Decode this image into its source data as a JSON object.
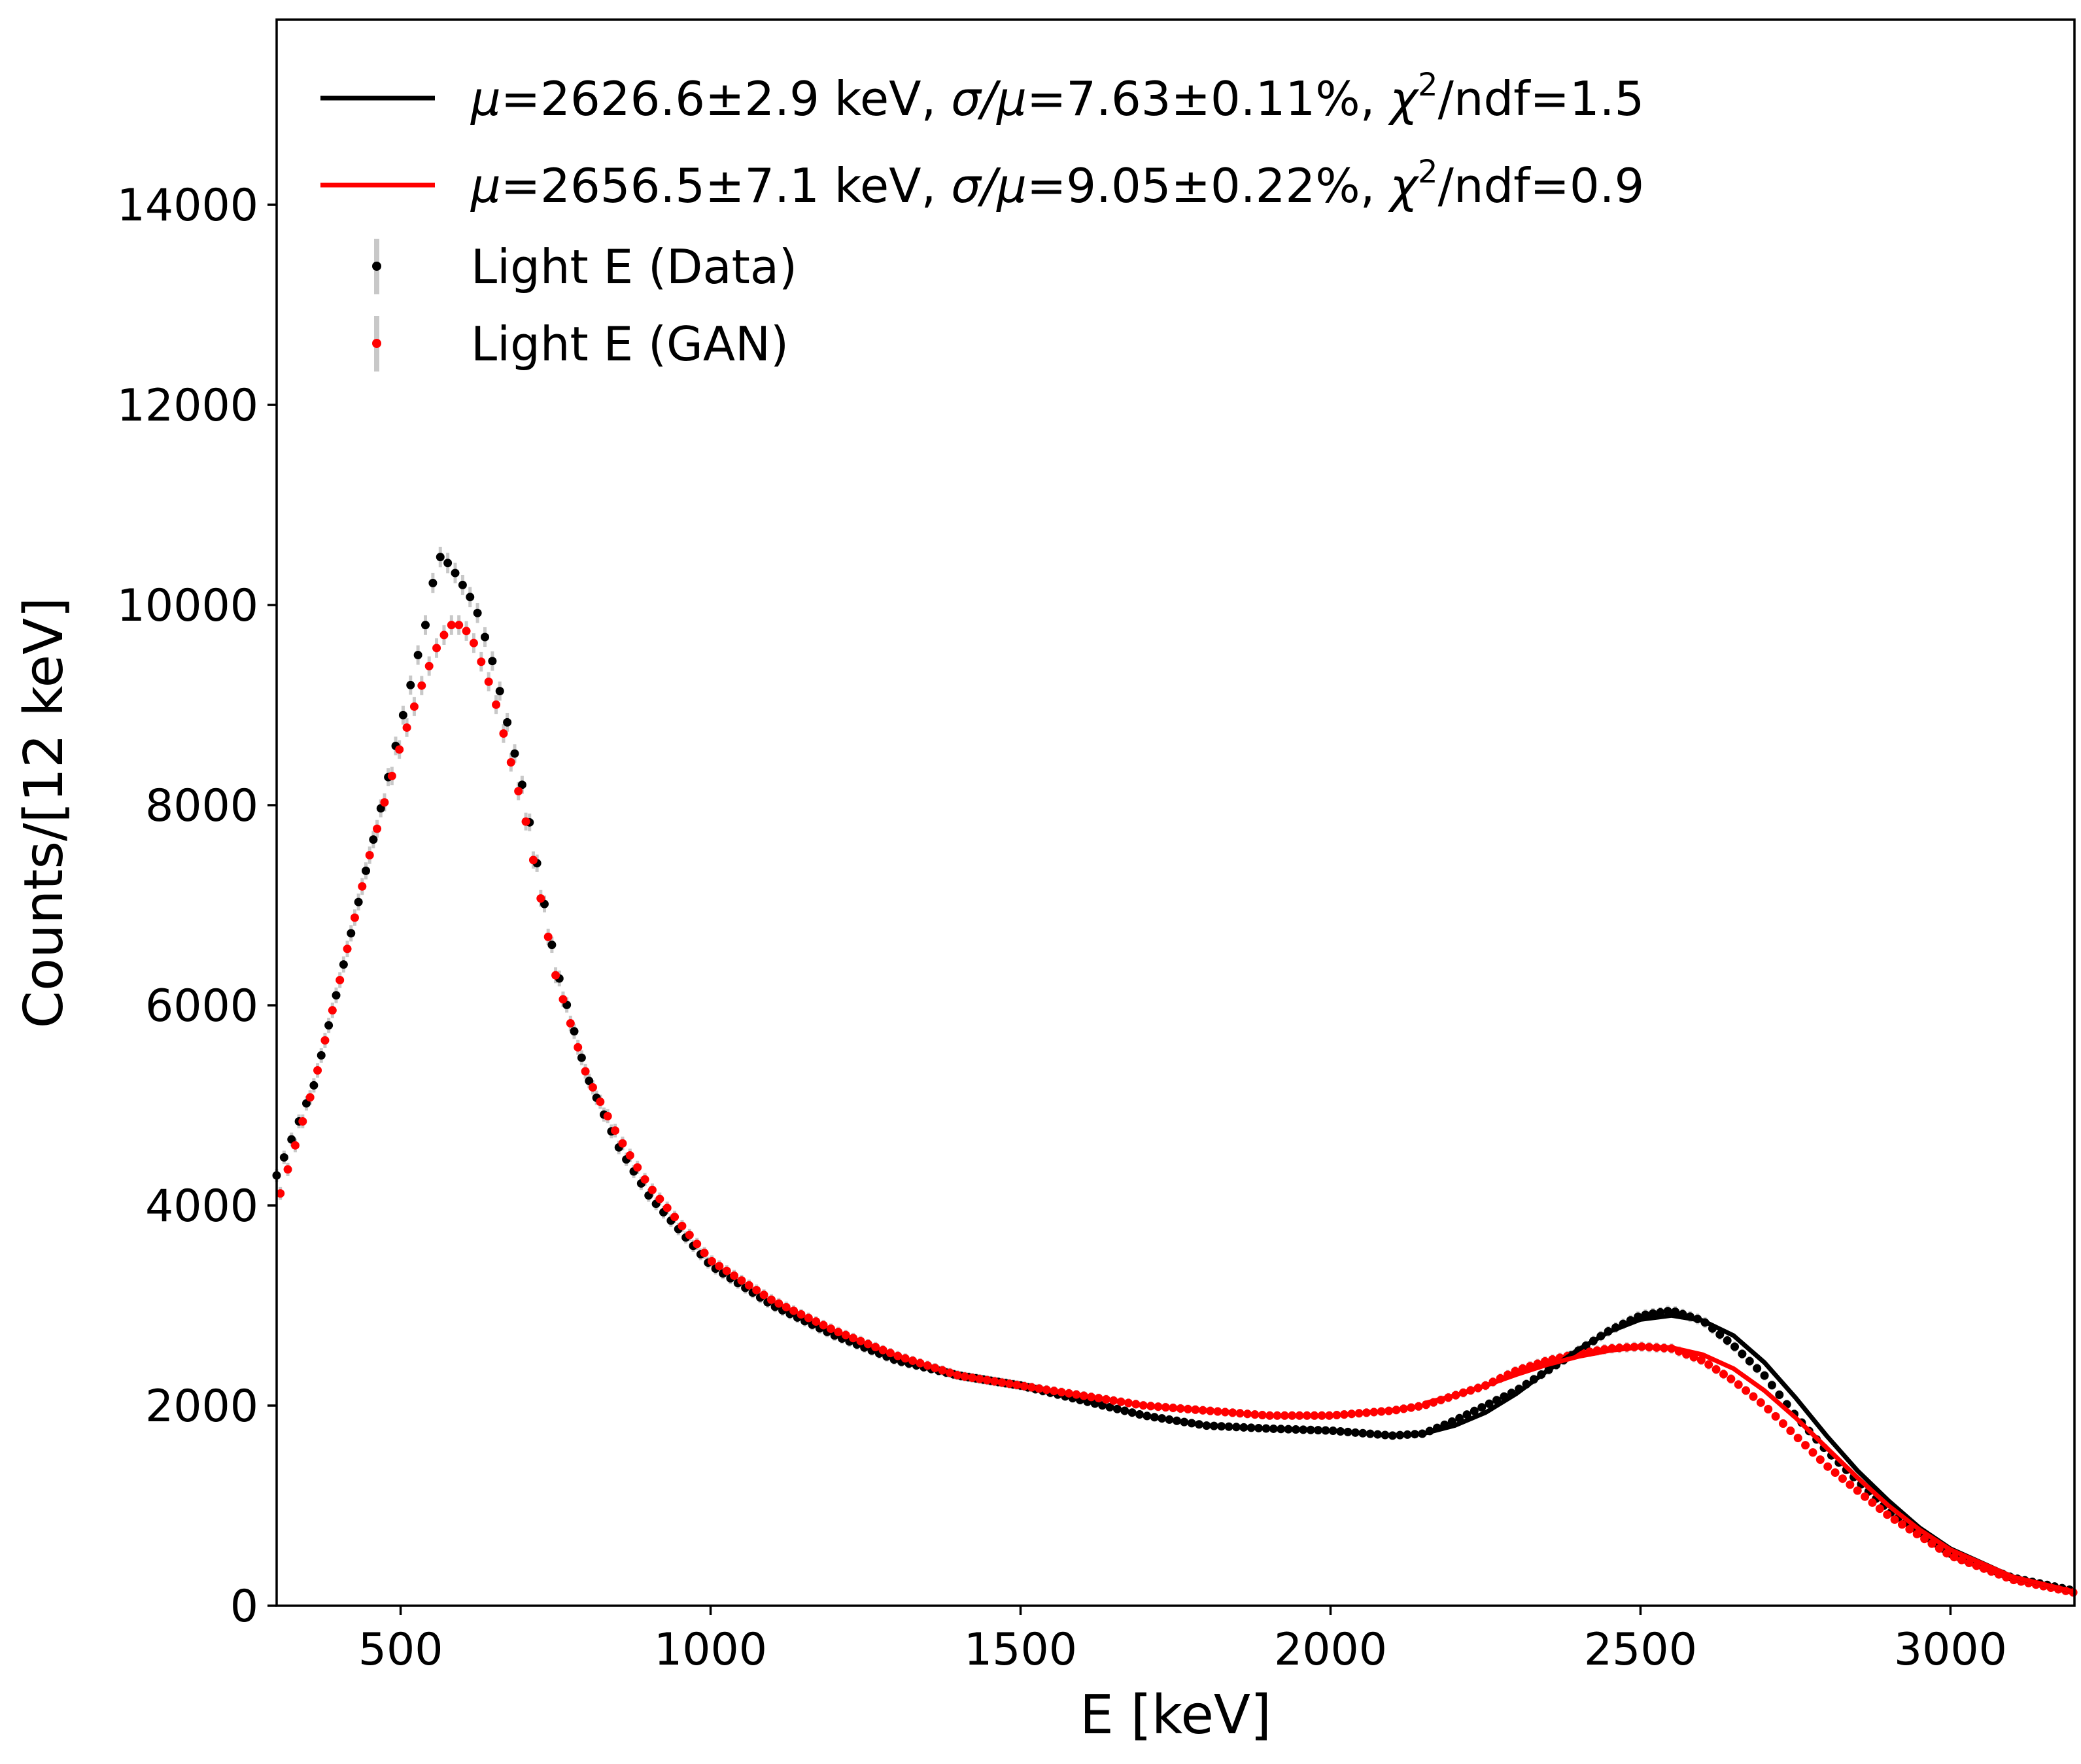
{
  "chart_data": {
    "type": "scatter",
    "title": "",
    "xlabel": "E [keV]",
    "ylabel": "Counts/[12 keV]",
    "xlim": [
      300,
      3200
    ],
    "ylim": [
      0,
      15850
    ],
    "xticks": [
      500,
      1000,
      1500,
      2000,
      2500,
      3000
    ],
    "xtick_labels": [
      "500",
      "1000",
      "1500",
      "2000",
      "2500",
      "3000"
    ],
    "yticks": [
      0,
      2000,
      4000,
      6000,
      8000,
      10000,
      12000,
      14000
    ],
    "ytick_labels": [
      "0",
      "2000",
      "4000",
      "6000",
      "8000",
      "10000",
      "12000",
      "14000"
    ],
    "grid": false,
    "legend_position": "top-left",
    "colors": {
      "data": "#000000",
      "gan": "#ff0000",
      "errorbar": "#c8c8c8"
    },
    "legend": {
      "fit_data": {
        "mu_symbol": "μ",
        "mu_text": "=2626.6±2.9 keV, ",
        "sigma_symbol": "σ/μ",
        "sigma_text": "=7.63±0.11%,  ",
        "chi_symbol": "χ",
        "chi_sup": "2",
        "chi_text": "/ndf=1.5"
      },
      "fit_gan": {
        "mu_symbol": "μ",
        "mu_text": "=2656.5±7.1 keV, ",
        "sigma_symbol": "σ/μ",
        "sigma_text": "=9.05±0.22%,  ",
        "chi_symbol": "χ",
        "chi_sup": "2",
        "chi_text": "/ndf=0.9"
      },
      "series_data": "Light E (Data)",
      "series_gan": "Light E (GAN)"
    },
    "series": [
      {
        "name": "Light E (Data)",
        "color": "#000000",
        "x": [
          300,
          360,
          400,
          450,
          500,
          540,
          560,
          580,
          600,
          620,
          650,
          700,
          750,
          800,
          850,
          900,
          1000,
          1100,
          1200,
          1300,
          1400,
          1500,
          1600,
          1700,
          1800,
          1900,
          2000,
          2100,
          2150,
          2200,
          2250,
          2300,
          2350,
          2400,
          2450,
          2500,
          2550,
          2600,
          2650,
          2700,
          2750,
          2800,
          2900,
          3000,
          3100,
          3200
        ],
        "y": [
          4300,
          5200,
          6200,
          7500,
          8800,
          9800,
          10500,
          10400,
          10200,
          10000,
          9400,
          8100,
          6400,
          5300,
          4600,
          4100,
          3400,
          3000,
          2700,
          2450,
          2300,
          2200,
          2050,
          1900,
          1800,
          1770,
          1750,
          1700,
          1720,
          1850,
          2000,
          2150,
          2350,
          2550,
          2750,
          2900,
          2950,
          2850,
          2600,
          2300,
          1900,
          1550,
          950,
          520,
          280,
          150
        ]
      },
      {
        "name": "Light E (GAN)",
        "color": "#ff0000",
        "x": [
          300,
          360,
          400,
          450,
          500,
          540,
          560,
          580,
          600,
          620,
          650,
          700,
          750,
          800,
          850,
          900,
          1000,
          1100,
          1200,
          1300,
          1400,
          1500,
          1600,
          1700,
          1800,
          1900,
          2000,
          2100,
          2150,
          2200,
          2250,
          2300,
          2350,
          2400,
          2450,
          2500,
          2550,
          2600,
          2650,
          2700,
          2750,
          2800,
          2900,
          3000,
          3100,
          3200
        ],
        "y": [
          4000,
          5200,
          6200,
          7500,
          8600,
          9300,
          9600,
          9800,
          9800,
          9600,
          9100,
          7900,
          6300,
          5300,
          4700,
          4200,
          3450,
          3050,
          2750,
          2500,
          2300,
          2200,
          2100,
          2000,
          1950,
          1900,
          1900,
          1950,
          2000,
          2100,
          2200,
          2350,
          2450,
          2520,
          2570,
          2590,
          2570,
          2450,
          2250,
          2000,
          1700,
          1400,
          900,
          500,
          260,
          130
        ]
      },
      {
        "name": "",
        "color": "#000000",
        "x": [
          2150,
          2200,
          2250,
          2300,
          2350,
          2400,
          2450,
          2500,
          2550,
          2600,
          2650,
          2700,
          2750,
          2800,
          2850,
          2900,
          2950,
          3000,
          3100,
          3200
        ],
        "y": [
          1720,
          1800,
          1930,
          2120,
          2350,
          2560,
          2740,
          2860,
          2900,
          2850,
          2700,
          2430,
          2080,
          1700,
          1350,
          1050,
          780,
          570,
          290,
          140
        ]
      },
      {
        "name": "",
        "color": "#ff0000",
        "x": [
          2150,
          2200,
          2250,
          2300,
          2350,
          2400,
          2450,
          2500,
          2550,
          2600,
          2650,
          2700,
          2750,
          2800,
          2850,
          2900,
          2950,
          3000,
          3100,
          3200
        ],
        "y": [
          2020,
          2100,
          2200,
          2310,
          2410,
          2490,
          2550,
          2585,
          2580,
          2510,
          2370,
          2150,
          1880,
          1580,
          1280,
          1000,
          760,
          560,
          290,
          140
        ]
      }
    ]
  }
}
